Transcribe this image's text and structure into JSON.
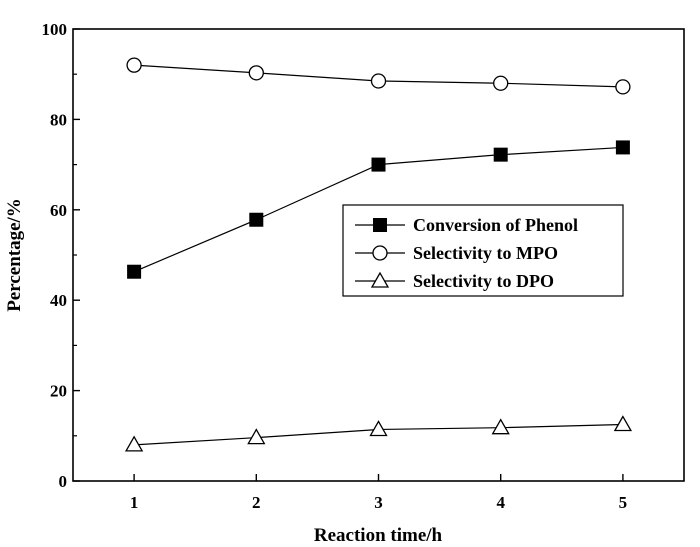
{
  "chart_data": {
    "type": "line",
    "title": "",
    "xlabel": "Reaction time/h",
    "ylabel": "Percentage/%",
    "x": [
      1,
      2,
      3,
      4,
      5
    ],
    "xlim": [
      0.5,
      5.5
    ],
    "ylim": [
      0,
      100
    ],
    "x_ticks": [
      "1",
      "2",
      "3",
      "4",
      "5"
    ],
    "y_ticks": [
      "0",
      "20",
      "40",
      "60",
      "80",
      "100"
    ],
    "grid": false,
    "legend_position": "center-right",
    "series": [
      {
        "name": "Conversion of Phenol",
        "marker": "filled-square",
        "values": [
          46.3,
          57.8,
          70.0,
          72.2,
          73.8
        ]
      },
      {
        "name": "Selectivity to MPO",
        "marker": "open-circle",
        "values": [
          92.0,
          90.3,
          88.5,
          88.0,
          87.2
        ]
      },
      {
        "name": "Selectivity to DPO",
        "marker": "open-triangle",
        "values": [
          8.0,
          9.6,
          11.4,
          11.8,
          12.5
        ]
      }
    ]
  }
}
